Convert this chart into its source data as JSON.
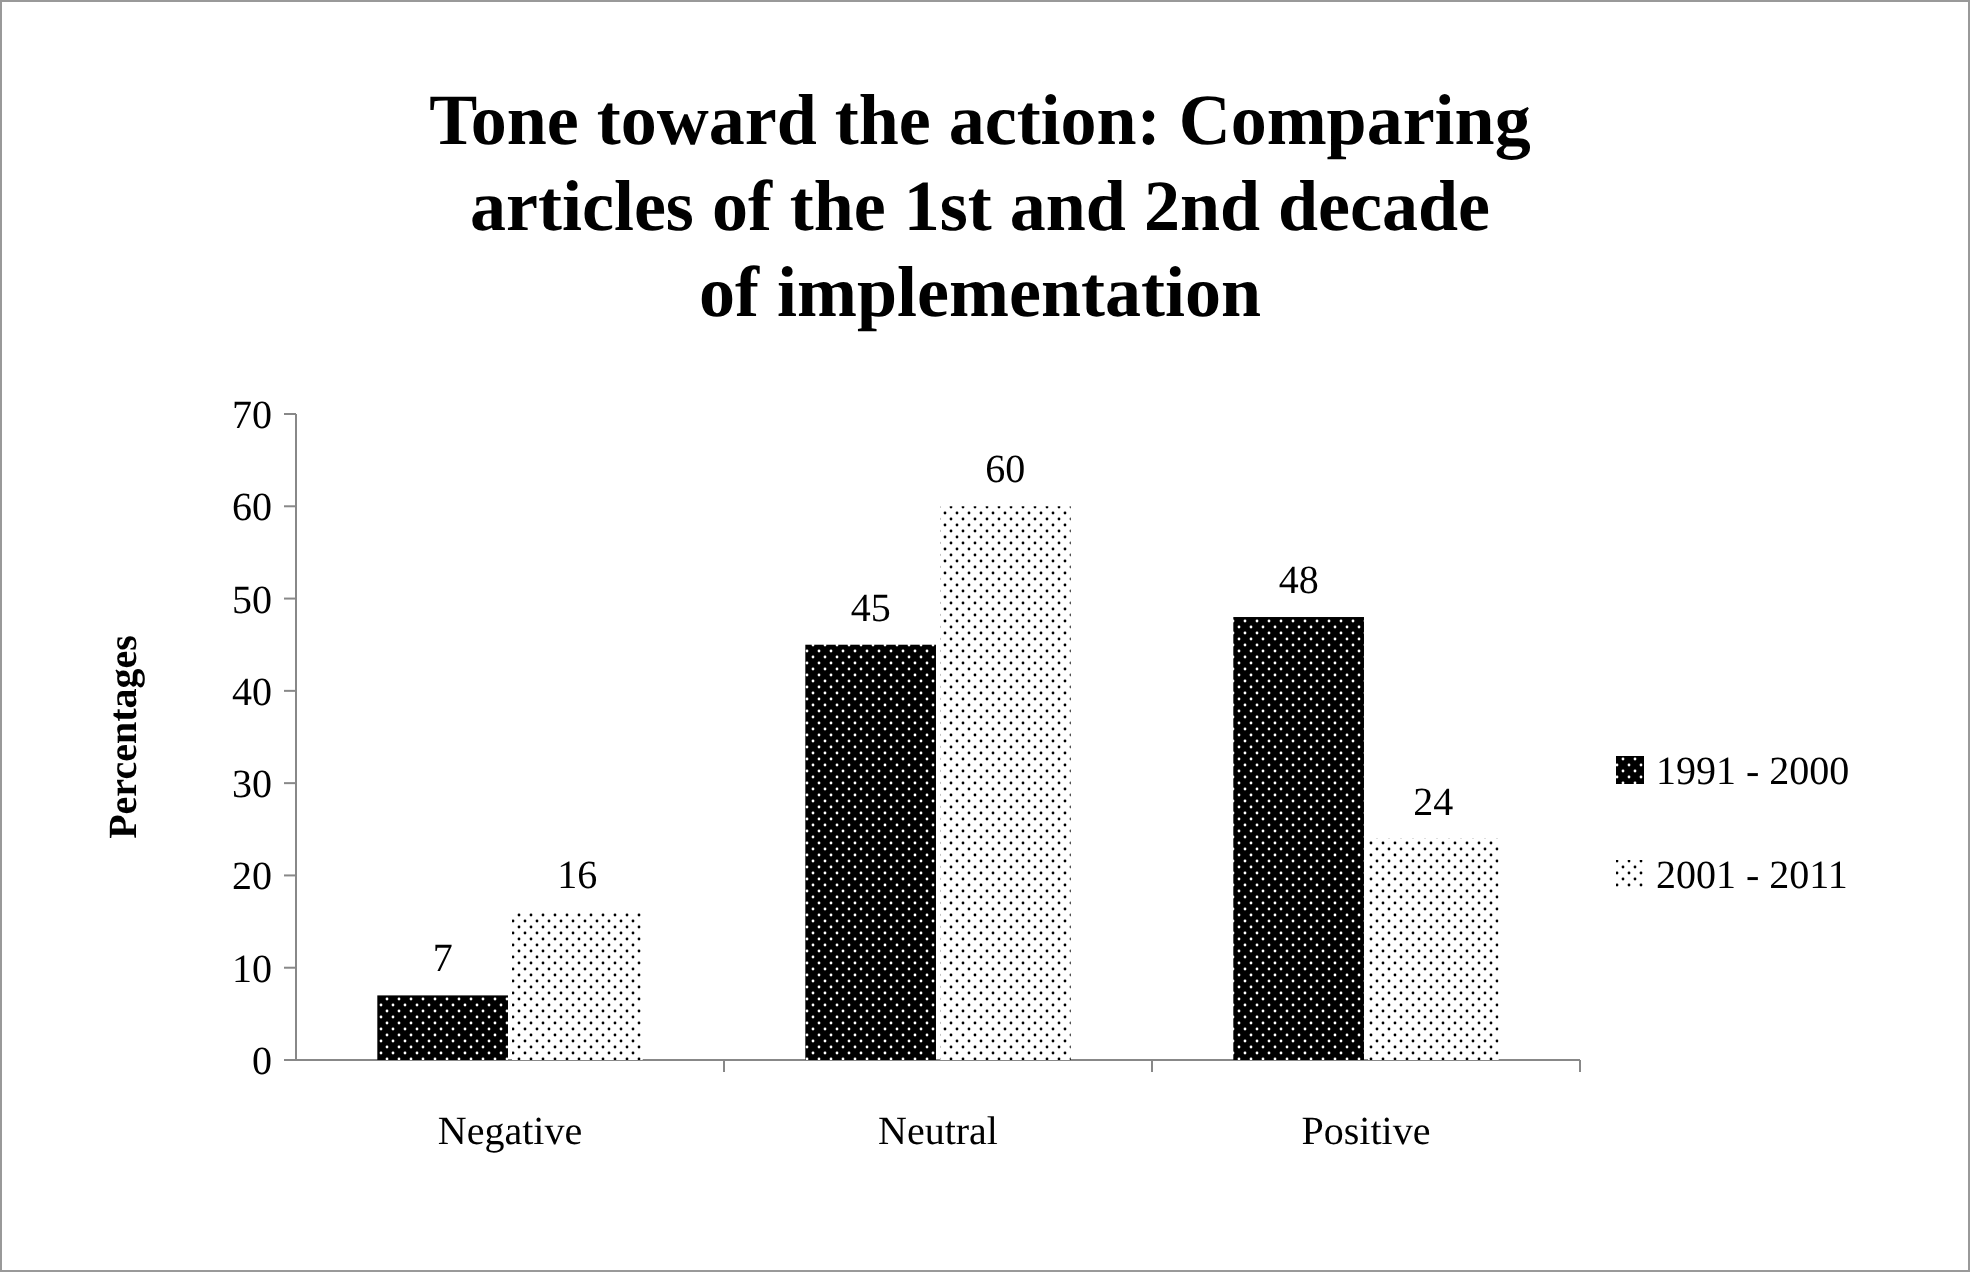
{
  "chart_data": {
    "type": "bar",
    "title": "Tone toward the action: Comparing articles of the 1st and 2nd decade of implementation",
    "ylabel": "Percentages",
    "categories": [
      "Negative",
      "Neutral",
      "Positive"
    ],
    "series": [
      {
        "name": "1991 - 2000",
        "color": "#000000",
        "values": [
          7,
          45,
          48
        ]
      },
      {
        "name": "2001 - 2011",
        "color": "#ffffff",
        "values": [
          16,
          60,
          24
        ]
      }
    ],
    "ylim": [
      0,
      70
    ],
    "yticks": [
      0,
      10,
      20,
      30,
      40,
      50,
      60,
      70
    ],
    "data_labels": true,
    "legend": "right",
    "grid": false
  }
}
